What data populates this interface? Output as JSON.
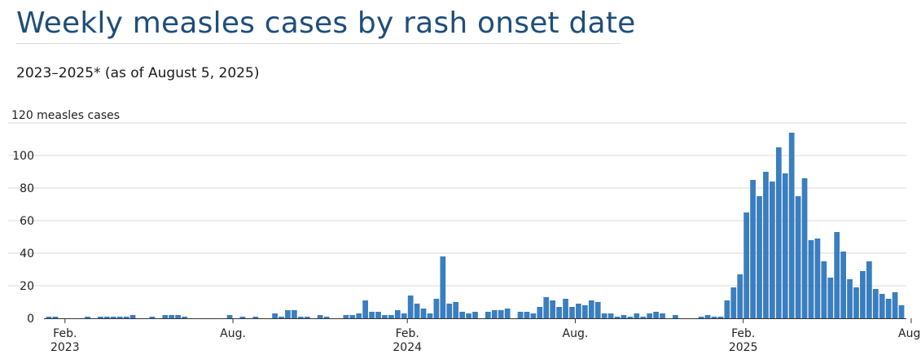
{
  "header": {
    "title": "Weekly measles cases by rash onset date",
    "subtitle": "2023–2025* (as of August 5, 2025)"
  },
  "colors": {
    "bar": "#3a7ebf",
    "grid": "#d9d9d9",
    "axis": "#333333"
  },
  "chart_data": {
    "type": "bar",
    "title": "Weekly measles cases by rash onset date",
    "subtitle": "2023–2025* (as of August 5, 2025)",
    "ylabel": "measles cases",
    "ylim": [
      0,
      120
    ],
    "yticks": [
      0,
      20,
      40,
      60,
      80,
      100,
      120
    ],
    "ytick_labels": [
      "0",
      "20",
      "40",
      "60",
      "80",
      "100",
      "120 measles cases"
    ],
    "xticks": [
      {
        "week": 3,
        "label1": "Feb.",
        "label2": "2023"
      },
      {
        "week": 29,
        "label1": "Aug.",
        "label2": ""
      },
      {
        "week": 56,
        "label1": "Feb.",
        "label2": "2024"
      },
      {
        "week": 82,
        "label1": "Aug.",
        "label2": ""
      },
      {
        "week": 108,
        "label1": "Feb.",
        "label2": "2025"
      },
      {
        "week": 134,
        "label1": "Aug.",
        "label2": ""
      }
    ],
    "series": [
      {
        "values": [
          1,
          1,
          0,
          0,
          0,
          0,
          1,
          0,
          1,
          1,
          1,
          1,
          1,
          2,
          0,
          0,
          1,
          0,
          2,
          2,
          2,
          1,
          0,
          0,
          0,
          0,
          0,
          0,
          2,
          0,
          1,
          0,
          1,
          0,
          0,
          3,
          1,
          5,
          5,
          1,
          1,
          0,
          2,
          1,
          0,
          0,
          2,
          2,
          3,
          11,
          4,
          4,
          2,
          2,
          5,
          3,
          14,
          9,
          6,
          3,
          12,
          38,
          9,
          10,
          4,
          3,
          4,
          0,
          4,
          5,
          5,
          6,
          0,
          4,
          4,
          3,
          7,
          13,
          11,
          7,
          12,
          7,
          9,
          8,
          11,
          10,
          3,
          3,
          1,
          2,
          1,
          3,
          1,
          3,
          4,
          3,
          0,
          2,
          0,
          0,
          0,
          1,
          2,
          1,
          1,
          11,
          19,
          27,
          65,
          85,
          75,
          90,
          84,
          105,
          89,
          114,
          75,
          86,
          48,
          49,
          35,
          25,
          53,
          41,
          24,
          19,
          29,
          35,
          18,
          15,
          12,
          16,
          8
        ]
      }
    ]
  }
}
